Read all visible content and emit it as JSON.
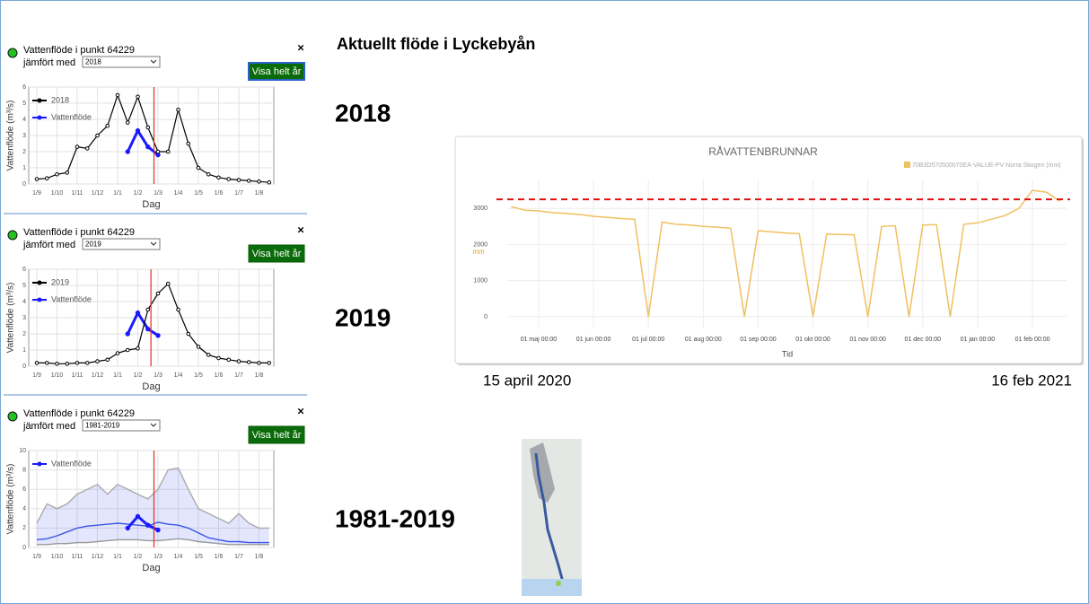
{
  "heading": "Aktuellt flöde i Lyckebyån",
  "panels": [
    {
      "title": "Vattenflöde i punkt 64229",
      "compare_label": "jämfört med",
      "selected": "2018",
      "button": "Visa helt år",
      "close": "×"
    },
    {
      "title": "Vattenflöde i punkt 64229",
      "compare_label": "jämfört med",
      "selected": "2019",
      "button": "Visa helt år",
      "close": "×"
    },
    {
      "title": "Vattenflöde i punkt 64229",
      "compare_label": "jämfört med",
      "selected": "1981-2019",
      "button": "Visa helt år",
      "close": "×"
    }
  ],
  "section_labels": [
    "2018",
    "2019",
    "1981-2019"
  ],
  "annotations": [
    "15 april 2020",
    "16 feb 2021"
  ],
  "chart_data": [
    {
      "type": "line",
      "ylabel": "Vattenflöde (m³/s)",
      "xlabel": "Dag",
      "categories": [
        "1/9",
        null,
        "1/10",
        null,
        "1/11",
        null,
        "1/12",
        null,
        "1/1",
        null,
        "1/2",
        null,
        "1/3",
        null,
        "1/4",
        null,
        "1/5",
        null,
        "1/6",
        null,
        "1/7",
        null,
        "1/8",
        null
      ],
      "ylim": [
        0,
        6
      ],
      "yticks": [
        0,
        1,
        2,
        3,
        4,
        5,
        6
      ],
      "series": [
        {
          "name": "2018",
          "color": "#000000",
          "values": [
            0.3,
            0.35,
            0.6,
            0.7,
            2.3,
            2.2,
            3.0,
            3.6,
            5.5,
            3.8,
            5.4,
            3.5,
            2.0,
            2.0,
            4.6,
            2.5,
            1.0,
            0.6,
            0.4,
            0.3,
            0.25,
            0.2,
            0.15,
            0.1
          ]
        },
        {
          "name": "Vattenflöde",
          "color": "#1a1aff",
          "values": [
            null,
            null,
            null,
            null,
            null,
            null,
            null,
            null,
            null,
            2.0,
            3.3,
            2.3,
            1.8,
            null,
            null,
            null,
            null,
            null,
            null,
            null,
            null,
            null,
            null,
            null
          ]
        }
      ]
    },
    {
      "type": "line",
      "ylabel": "Vattenflöde (m³/s)",
      "xlabel": "Dag",
      "categories": [
        "1/9",
        null,
        "1/10",
        null,
        "1/11",
        null,
        "1/12",
        null,
        "1/1",
        null,
        "1/2",
        null,
        "1/3",
        null,
        "1/4",
        null,
        "1/5",
        null,
        "1/6",
        null,
        "1/7",
        null,
        "1/8",
        null
      ],
      "ylim": [
        0,
        6
      ],
      "yticks": [
        0,
        1,
        2,
        3,
        4,
        5,
        6
      ],
      "series": [
        {
          "name": "2019",
          "color": "#000000",
          "values": [
            0.2,
            0.2,
            0.15,
            0.15,
            0.2,
            0.2,
            0.3,
            0.4,
            0.8,
            1.0,
            1.1,
            3.5,
            4.5,
            5.1,
            3.5,
            2.0,
            1.2,
            0.7,
            0.5,
            0.4,
            0.3,
            0.25,
            0.2,
            0.2
          ]
        },
        {
          "name": "Vattenflöde",
          "color": "#1a1aff",
          "values": [
            null,
            null,
            null,
            null,
            null,
            null,
            null,
            null,
            null,
            2.0,
            3.3,
            2.3,
            1.9,
            null,
            null,
            null,
            null,
            null,
            null,
            null,
            null,
            null,
            null,
            null
          ]
        }
      ]
    },
    {
      "type": "line",
      "ylabel": "Vattenflöde (m³/s)",
      "xlabel": "Dag",
      "categories": [
        "1/9",
        null,
        "1/10",
        null,
        "1/11",
        null,
        "1/12",
        null,
        "1/1",
        null,
        "1/2",
        null,
        "1/3",
        null,
        "1/4",
        null,
        "1/5",
        null,
        "1/6",
        null,
        "1/7",
        null,
        "1/8",
        null
      ],
      "ylim": [
        0,
        10
      ],
      "yticks": [
        0,
        2,
        4,
        6,
        8,
        10
      ],
      "band": "rgba(80,100,240,0.16)",
      "series": [
        {
          "name": "Vattenflöde",
          "color": "#1a1aff",
          "values": [
            null,
            null,
            null,
            null,
            null,
            null,
            null,
            null,
            null,
            2.0,
            3.2,
            2.3,
            1.8,
            null,
            null,
            null,
            null,
            null,
            null,
            null,
            null,
            null,
            null,
            null
          ]
        },
        {
          "color": "#3b55e6",
          "values": [
            0.8,
            0.9,
            1.2,
            1.6,
            2.0,
            2.2,
            2.3,
            2.4,
            2.5,
            2.4,
            2.3,
            2.2,
            2.6,
            2.4,
            2.3,
            2.0,
            1.5,
            1.0,
            0.8,
            0.6,
            0.6,
            0.5,
            0.5,
            0.5
          ]
        },
        {
          "color": "#aaaaaa",
          "values": [
            2.5,
            4.5,
            4.0,
            4.5,
            5.5,
            6,
            6.5,
            5.5,
            6.5,
            6,
            5.5,
            5,
            6,
            8,
            8.2,
            6,
            4,
            3.5,
            3,
            2.5,
            3.5,
            2.5,
            2,
            2
          ]
        },
        {
          "color": "#999999",
          "values": [
            0.3,
            0.3,
            0.4,
            0.4,
            0.5,
            0.5,
            0.6,
            0.7,
            0.8,
            0.8,
            0.8,
            0.7,
            0.7,
            0.8,
            0.9,
            0.8,
            0.6,
            0.5,
            0.4,
            0.3,
            0.3,
            0.3,
            0.3,
            0.3
          ]
        }
      ]
    },
    {
      "type": "line",
      "title": "RÅVATTENBRUNNAR",
      "ylabel": "mm",
      "xlabel": "Tid",
      "categories": [
        null,
        null,
        "01 maj 00:00",
        null,
        null,
        null,
        "01 jun 00:00",
        null,
        null,
        null,
        "01 jul 00:00",
        null,
        null,
        null,
        "01 aug 00:00",
        null,
        null,
        null,
        "01 sep 00:00",
        null,
        null,
        null,
        "01 okt 00:00",
        null,
        null,
        null,
        "01 nov 00:00",
        null,
        null,
        null,
        "01 dec 00:00",
        null,
        null,
        null,
        "01 jan 00:00",
        null,
        null,
        null,
        "01 feb 00:00",
        null,
        null
      ],
      "ylim": [
        -300,
        3800
      ],
      "yticks": [
        0,
        1000,
        2000,
        3000
      ],
      "series": [
        {
          "name": "70B3D570500070EA-VALUE-PV Norra Skogen (mm)",
          "color": "#f0c060",
          "values": [
            3050,
            2950,
            2930,
            2880,
            2860,
            2830,
            2780,
            2750,
            2720,
            2700,
            0,
            2620,
            2560,
            2540,
            2500,
            2480,
            2450,
            0,
            2380,
            2350,
            2320,
            2300,
            0,
            2290,
            2280,
            2270,
            0,
            2500,
            2520,
            0,
            2540,
            2550,
            0,
            2560,
            2600,
            2700,
            2800,
            3000,
            3500,
            3450,
            3200
          ]
        }
      ],
      "reference_line": {
        "value": 3250,
        "color": "#e01010"
      }
    }
  ]
}
